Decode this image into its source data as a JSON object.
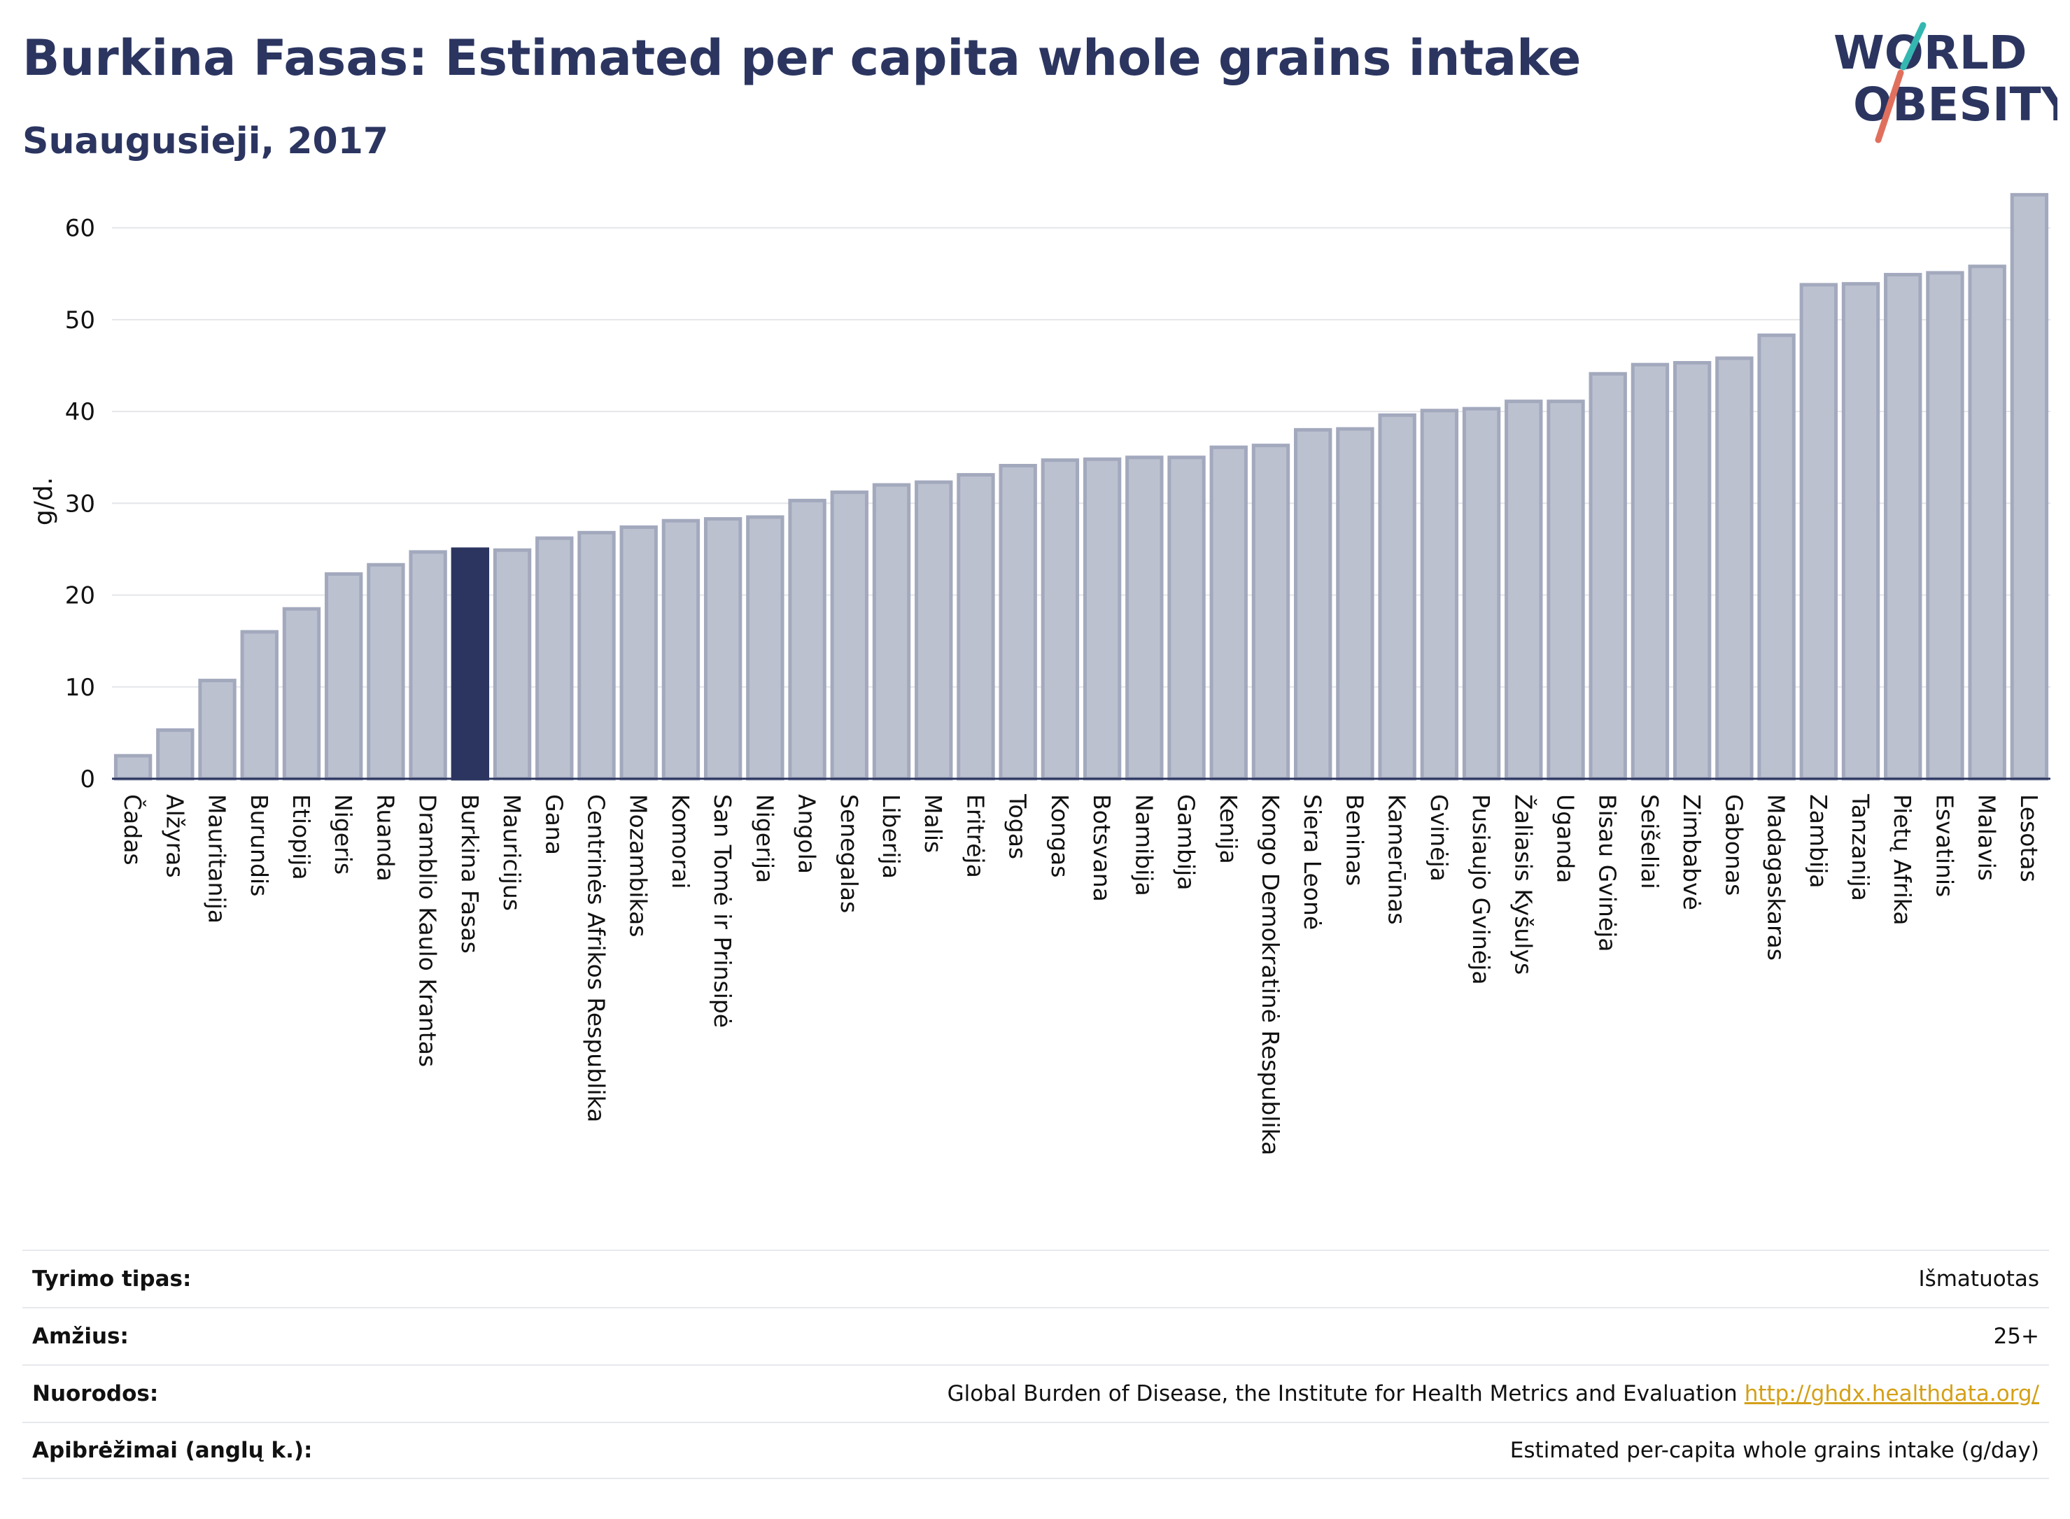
{
  "header": {
    "title": "Burkina Fasas: Estimated per capita whole grains intake",
    "subtitle": "Suaugusieji, 2017"
  },
  "logo": {
    "line1": "WORLD",
    "line2": "OBESITY",
    "text_color": "#2b3560",
    "accent_teal": "#35b7b1",
    "accent_red": "#e0705d"
  },
  "chart_data": {
    "type": "bar",
    "ylabel": "g/d.",
    "ylim": [
      0,
      65
    ],
    "yticks": [
      0,
      10,
      20,
      30,
      40,
      50,
      60
    ],
    "grid": true,
    "highlight": "Burkina Fasas",
    "colors": {
      "bar": "#bcc1d0",
      "bar_border": "#a3a9bd",
      "highlight": "#2b3560",
      "grid": "#e4e6ea",
      "axis": "#2b3560"
    },
    "categories": [
      "Čadas",
      "Alžyras",
      "Mauritanija",
      "Burundis",
      "Etiopija",
      "Nigeris",
      "Ruanda",
      "Dramblio Kaulo Krantas",
      "Burkina Fasas",
      "Mauricijus",
      "Gana",
      "Centrinės Afrikos Respublika",
      "Mozambikas",
      "Komorai",
      "San Tomė ir Prinsipė",
      "Nigerija",
      "Angola",
      "Senegalas",
      "Liberija",
      "Malis",
      "Eritrėja",
      "Togas",
      "Kongas",
      "Botsvana",
      "Namibija",
      "Gambija",
      "Kenija",
      "Kongo Demokratinė Respublika",
      "Siera Leonė",
      "Beninas",
      "Kamerūnas",
      "Gvinėja",
      "Pusiaujo Gvinėja",
      "Žaliasis Kyšulys",
      "Uganda",
      "Bisau Gvinėja",
      "Seišeliai",
      "Zimbabvė",
      "Gabonas",
      "Madagaskaras",
      "Zambija",
      "Tanzanija",
      "Pietų Afrika",
      "Esvatinis",
      "Malavis",
      "Lesotas"
    ],
    "values": [
      2.5,
      5.3,
      10.7,
      16.0,
      18.5,
      22.3,
      23.3,
      24.7,
      25.0,
      24.9,
      26.2,
      26.8,
      27.4,
      28.1,
      28.3,
      28.5,
      30.3,
      31.2,
      32.0,
      32.3,
      33.1,
      34.1,
      34.7,
      34.8,
      35.0,
      35.0,
      36.1,
      36.3,
      38.0,
      38.1,
      39.6,
      40.1,
      40.3,
      41.1,
      41.1,
      44.1,
      45.1,
      45.3,
      45.8,
      48.3,
      53.8,
      53.9,
      54.9,
      55.1,
      55.8,
      63.6
    ]
  },
  "meta": {
    "rows": [
      {
        "key": "Tyrimo tipas:",
        "value": "Išmatuotas"
      },
      {
        "key": "Amžius:",
        "value": "25+"
      },
      {
        "key": "Nuorodos:",
        "value": "Global Burden of Disease, the Institute for Health Metrics and Evaluation",
        "link": "http://ghdx.healthdata.org/"
      },
      {
        "key": "Apibrėžimai (anglų k.):",
        "value": "Estimated per-capita whole grains intake (g/day)"
      }
    ]
  }
}
